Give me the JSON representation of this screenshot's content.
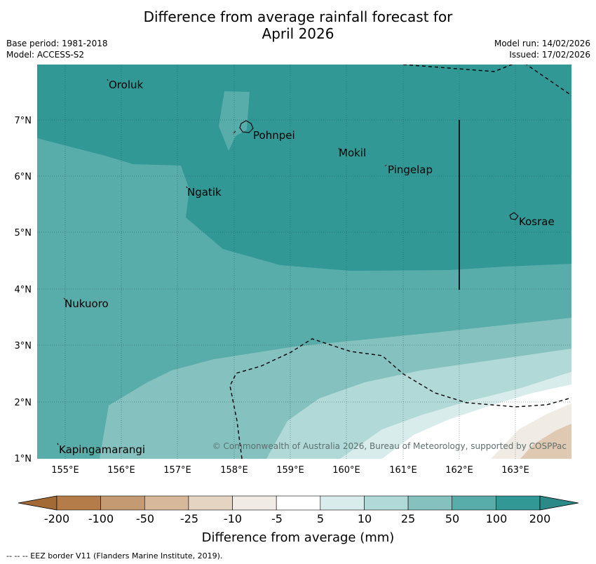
{
  "title_line1": "Difference from average rainfall forecast for",
  "title_line2": "April 2026",
  "meta": {
    "base_period": "Base period: 1981-2018",
    "model": "Model: ACCESS-S2",
    "model_run": "Model run: 14/02/2026",
    "issued": "Issued: 17/02/2026"
  },
  "map": {
    "lon_ticks": [
      "155°E",
      "156°E",
      "157°E",
      "158°E",
      "159°E",
      "160°E",
      "161°E",
      "162°E",
      "163°E"
    ],
    "lat_ticks": [
      "1°N",
      "2°N",
      "3°N",
      "4°N",
      "5°N",
      "6°N",
      "7°N"
    ],
    "places": [
      "Oroluk",
      "Pohnpei",
      "Mokil",
      "Pingelap",
      "Ngatik",
      "Kosrae",
      "Nukuoro",
      "Kapingamarangi"
    ],
    "copyright": "© Commonwealth of Australia 2026, Bureau of Meteorology, supported by COSPPac"
  },
  "legend": {
    "tick_labels": [
      "-200",
      "-100",
      "-50",
      "-25",
      "-10",
      "-5",
      "5",
      "10",
      "25",
      "50",
      "100",
      "200"
    ],
    "colors": [
      "#a46a36",
      "#b47c48",
      "#c49a73",
      "#d7b89a",
      "#e6d4c2",
      "#f1ebe5",
      "#ffffff",
      "#d9ecec",
      "#b1d9d7",
      "#85c1be",
      "#58aca9",
      "#319896",
      "#2b8a88"
    ],
    "title": "Difference from average (mm)"
  },
  "footnote": "--  --  -- EEZ border V11 (Flanders Marine Institute, 2019)."
}
